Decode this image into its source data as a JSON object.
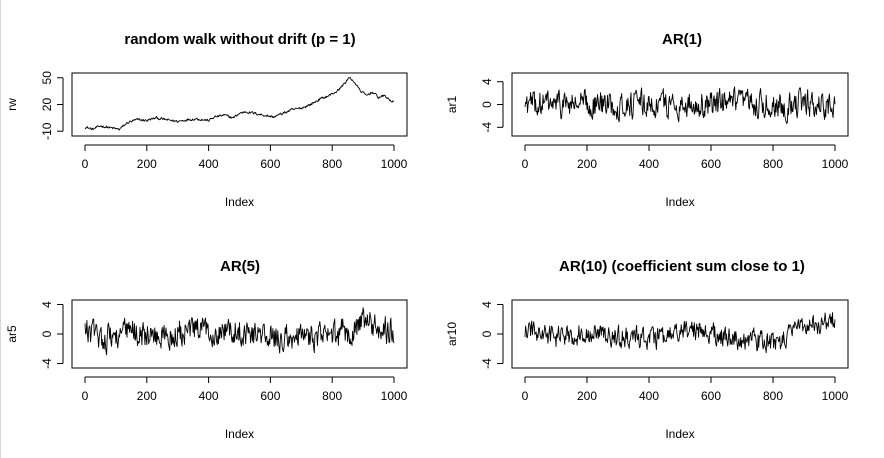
{
  "chart_data": [
    {
      "type": "line",
      "title": "random walk without drift (p = 1)",
      "xlabel": "Index",
      "ylabel": "rw",
      "xlim": [
        0,
        1000
      ],
      "ylim": [
        -12,
        52
      ],
      "xticks": [
        0,
        200,
        400,
        600,
        800,
        1000
      ],
      "yticks": [
        -10,
        20,
        50
      ],
      "ytick_labels": [
        "-10",
        "20",
        "50"
      ],
      "series": [
        {
          "anchors": [
            [
              0,
              -5
            ],
            [
              25,
              -8
            ],
            [
              50,
              -4
            ],
            [
              80,
              -6
            ],
            [
              110,
              -8
            ],
            [
              140,
              0
            ],
            [
              170,
              3
            ],
            [
              200,
              2
            ],
            [
              230,
              5
            ],
            [
              260,
              3
            ],
            [
              300,
              1
            ],
            [
              330,
              3
            ],
            [
              360,
              4
            ],
            [
              400,
              2
            ],
            [
              420,
              6
            ],
            [
              450,
              8
            ],
            [
              480,
              5
            ],
            [
              500,
              10
            ],
            [
              520,
              12
            ],
            [
              550,
              10
            ],
            [
              580,
              8
            ],
            [
              610,
              6
            ],
            [
              640,
              10
            ],
            [
              670,
              14
            ],
            [
              700,
              16
            ],
            [
              730,
              20
            ],
            [
              760,
              26
            ],
            [
              790,
              30
            ],
            [
              820,
              36
            ],
            [
              840,
              44
            ],
            [
              855,
              50
            ],
            [
              870,
              46
            ],
            [
              890,
              36
            ],
            [
              910,
              30
            ],
            [
              930,
              34
            ],
            [
              950,
              28
            ],
            [
              970,
              30
            ],
            [
              985,
              25
            ],
            [
              1000,
              23
            ]
          ],
          "amplitude": 2.2
        }
      ]
    },
    {
      "type": "line",
      "title": "AR(1)",
      "xlabel": "Index",
      "ylabel": "ar1",
      "xlim": [
        0,
        1000
      ],
      "ylim": [
        -5,
        5
      ],
      "xticks": [
        0,
        200,
        400,
        600,
        800,
        1000
      ],
      "yticks": [
        -4,
        0,
        4
      ],
      "ytick_labels": [
        "-4",
        "0",
        "4"
      ],
      "series": [
        {
          "anchors": [
            [
              0,
              0
            ],
            [
              1000,
              0
            ]
          ],
          "amplitude": 3.6
        }
      ]
    },
    {
      "type": "line",
      "title": "AR(5)",
      "xlabel": "Index",
      "ylabel": "ar5",
      "xlim": [
        0,
        1000
      ],
      "ylim": [
        -4.2,
        4.2
      ],
      "xticks": [
        0,
        200,
        400,
        600,
        800,
        1000
      ],
      "yticks": [
        -4,
        0,
        4
      ],
      "ytick_labels": [
        "-4",
        "0",
        "4"
      ],
      "series": [
        {
          "anchors": [
            [
              0,
              0.5
            ],
            [
              60,
              -0.5
            ],
            [
              150,
              0.3
            ],
            [
              250,
              -0.5
            ],
            [
              350,
              0.4
            ],
            [
              450,
              0.5
            ],
            [
              500,
              0.6
            ],
            [
              600,
              -0.6
            ],
            [
              700,
              -0.4
            ],
            [
              800,
              -0.3
            ],
            [
              880,
              0.8
            ],
            [
              900,
              2
            ],
            [
              950,
              0.5
            ],
            [
              1000,
              0.8
            ]
          ],
          "amplitude": 2.8
        }
      ]
    },
    {
      "type": "line",
      "title": "AR(10) (coefficient sum close to 1)",
      "xlabel": "Index",
      "ylabel": "ar10",
      "xlim": [
        0,
        1000
      ],
      "ylim": [
        -4.2,
        4.2
      ],
      "xticks": [
        0,
        200,
        400,
        600,
        800,
        1000
      ],
      "yticks": [
        -4,
        0,
        4
      ],
      "ytick_labels": [
        "-4",
        "0",
        "4"
      ],
      "series": [
        {
          "anchors": [
            [
              0,
              0.5
            ],
            [
              100,
              -0.5
            ],
            [
              200,
              0.3
            ],
            [
              300,
              -0.5
            ],
            [
              400,
              -0.4
            ],
            [
              450,
              -0.8
            ],
            [
              500,
              0.5
            ],
            [
              550,
              0.6
            ],
            [
              600,
              0.2
            ],
            [
              650,
              -0.5
            ],
            [
              700,
              -0.7
            ],
            [
              780,
              -1.0
            ],
            [
              820,
              -1.6
            ],
            [
              850,
              0
            ],
            [
              880,
              0.8
            ],
            [
              910,
              1.6
            ],
            [
              950,
              1.2
            ],
            [
              990,
              2.2
            ],
            [
              1000,
              1.5
            ]
          ],
          "amplitude": 2.2
        }
      ]
    }
  ]
}
